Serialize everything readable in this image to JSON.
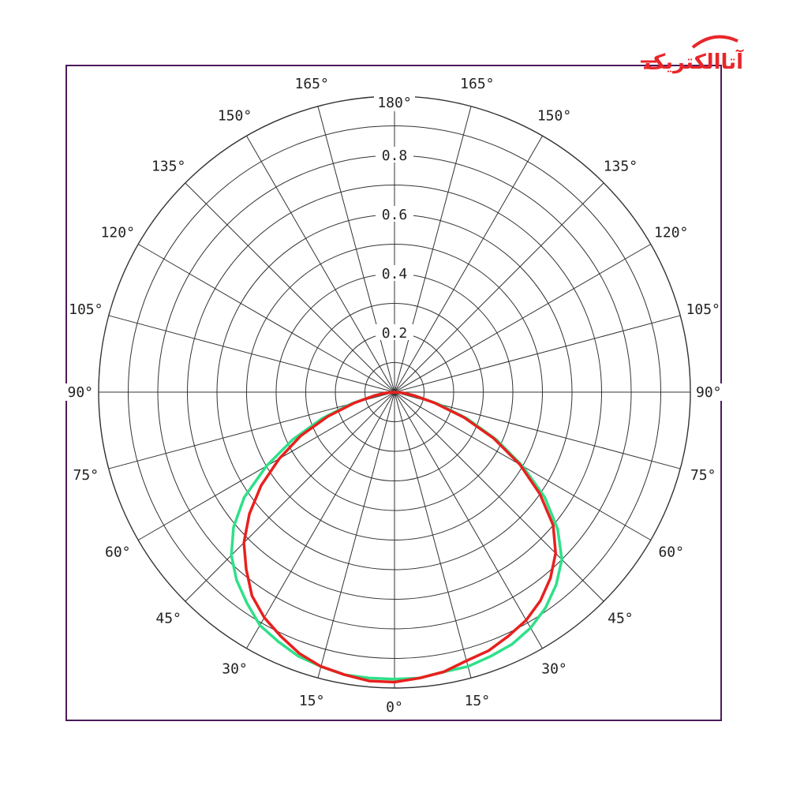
{
  "brand": {
    "logo_text": "آتاالکتریک",
    "logo_color": "#e8262a"
  },
  "chart_data": {
    "type": "polar",
    "title": "",
    "radial_max": 1.0,
    "radial_ticks": [
      0.2,
      0.4,
      0.6,
      0.8
    ],
    "radial_tick_labels": [
      "0.2",
      "0.4",
      "0.6",
      "0.8"
    ],
    "angle_step_deg": 15,
    "angle_labels_left": [
      "0°",
      "15°",
      "30°",
      "45°",
      "60°",
      "75°",
      "90°",
      "105°",
      "120°",
      "135°",
      "150°",
      "165°",
      "180°"
    ],
    "angle_labels_right": [
      "0°",
      "15°",
      "30°",
      "45°",
      "60°",
      "75°",
      "90°",
      "105°",
      "120°",
      "135°",
      "150°",
      "165°",
      "180°"
    ],
    "grid": true,
    "frame_color": "#4b1b5a",
    "grid_color": "#333333",
    "series": [
      {
        "color": "#2fe08a",
        "angles_deg": [
          0,
          5,
          10,
          15,
          20,
          25,
          30,
          35,
          40,
          45,
          50,
          55,
          60,
          65,
          70,
          75,
          80,
          85,
          90
        ],
        "values": [
          0.97,
          0.97,
          0.96,
          0.96,
          0.95,
          0.94,
          0.92,
          0.89,
          0.85,
          0.8,
          0.72,
          0.62,
          0.5,
          0.38,
          0.26,
          0.15,
          0.07,
          0.03,
          0.0
        ],
        "left_values": [
          0.97,
          0.97,
          0.97,
          0.96,
          0.95,
          0.93,
          0.91,
          0.87,
          0.83,
          0.78,
          0.71,
          0.62,
          0.5,
          0.38,
          0.26,
          0.15,
          0.07,
          0.03,
          0.0
        ]
      },
      {
        "color": "#e8201e",
        "angles_deg": [
          0,
          5,
          10,
          15,
          20,
          25,
          30,
          35,
          40,
          45,
          50,
          55,
          60,
          65,
          70,
          75,
          80,
          85,
          90
        ],
        "values": [
          0.98,
          0.97,
          0.96,
          0.94,
          0.93,
          0.91,
          0.89,
          0.86,
          0.82,
          0.77,
          0.7,
          0.6,
          0.49,
          0.37,
          0.25,
          0.14,
          0.07,
          0.03,
          0.0
        ],
        "left_values": [
          0.98,
          0.98,
          0.97,
          0.96,
          0.94,
          0.91,
          0.88,
          0.84,
          0.78,
          0.72,
          0.64,
          0.55,
          0.45,
          0.35,
          0.24,
          0.14,
          0.07,
          0.03,
          0.0
        ]
      }
    ]
  }
}
